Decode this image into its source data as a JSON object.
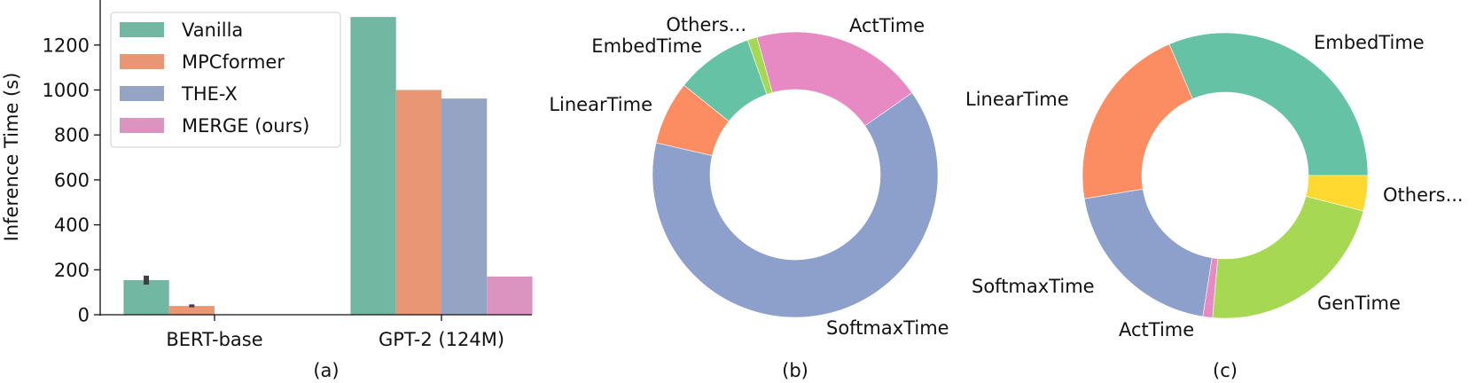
{
  "chart_data": [
    {
      "id": "a",
      "type": "bar",
      "caption": "(a)",
      "title": "",
      "xlabel": "",
      "ylabel": "Inference Time (s)",
      "ylim": [
        0,
        1380
      ],
      "yticks": [
        0,
        200,
        400,
        600,
        800,
        1000,
        1200
      ],
      "grid": false,
      "legend_position": "upper left",
      "categories": [
        "BERT-base",
        "GPT-2 (124M)"
      ],
      "series": [
        {
          "name": "Vanilla",
          "color": "#72b7a1",
          "values": [
            154,
            1325
          ],
          "error": [
            [
              134,
              174
            ],
            null
          ]
        },
        {
          "name": "MPCformer",
          "color": "#e89674",
          "values": [
            39,
            1000
          ],
          "error": [
            [
              33,
              46
            ],
            null
          ]
        },
        {
          "name": "THE-X",
          "color": "#95a4c3",
          "values": [
            0,
            962
          ],
          "error": [
            null,
            null
          ]
        },
        {
          "name": "MERGE (ours)",
          "color": "#db94bf",
          "values": [
            0,
            170
          ],
          "error": [
            null,
            null
          ]
        }
      ]
    },
    {
      "id": "b",
      "type": "pie",
      "caption": "(b)",
      "donut": true,
      "start_angle_deg": 35,
      "labels": [
        "ActTime",
        "Others...",
        "EmbedTime",
        "LinearTime",
        "SoftmaxTime"
      ],
      "values": [
        19.6,
        1.1,
        8.8,
        7.2,
        63.3
      ],
      "colors": [
        "#e78ac3",
        "#a6d854",
        "#66c2a5",
        "#fc8d62",
        "#8da0cb"
      ]
    },
    {
      "id": "c",
      "type": "pie",
      "caption": "(c)",
      "donut": true,
      "start_angle_deg": 0,
      "labels": [
        "EmbedTime",
        "LinearTime",
        "SoftmaxTime",
        "ActTime",
        "GenTime",
        "Others..."
      ],
      "values": [
        31.4,
        21.2,
        19.9,
        1.1,
        22.4,
        4.0
      ],
      "colors": [
        "#66c2a5",
        "#fc8d62",
        "#8da0cb",
        "#e78ac3",
        "#a6d854",
        "#ffd92f"
      ]
    }
  ],
  "bar_chart": {
    "ylabel": "Inference Time (s)",
    "caption": "(a)",
    "categories": [
      "BERT-base",
      "GPT-2 (124M)"
    ],
    "yticks": [
      "0",
      "200",
      "400",
      "600",
      "800",
      "1000",
      "1200"
    ],
    "legend": [
      "Vanilla",
      "MPCformer",
      "THE-X",
      "MERGE (ours)"
    ]
  },
  "pie_b": {
    "caption": "(b)",
    "labels": {
      "act": "ActTime",
      "others": "Others...",
      "embed": "EmbedTime",
      "linear": "LinearTime",
      "softmax": "SoftmaxTime"
    }
  },
  "pie_c": {
    "caption": "(c)",
    "labels": {
      "embed": "EmbedTime",
      "linear": "LinearTime",
      "softmax": "SoftmaxTime",
      "act": "ActTime",
      "gen": "GenTime",
      "others": "Others..."
    }
  }
}
